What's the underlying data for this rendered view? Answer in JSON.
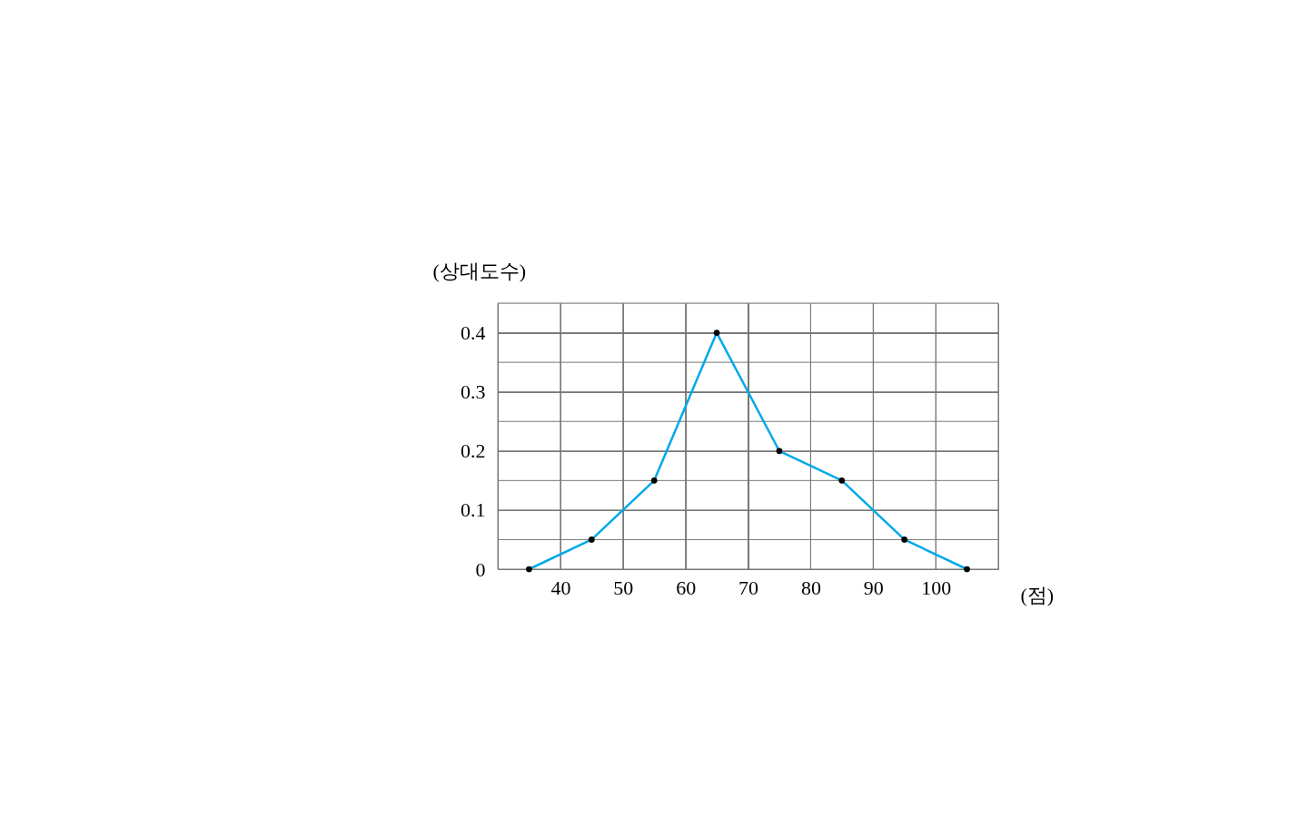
{
  "chart_data": {
    "type": "line",
    "xlabel": "(점)",
    "ylabel": "(상대도수)",
    "x": [
      35,
      45,
      55,
      65,
      75,
      85,
      95,
      105
    ],
    "series": [
      {
        "color": "#00a9e8",
        "values": [
          0,
          0.05,
          0.15,
          0.4,
          0.2,
          0.15,
          0.05,
          0
        ]
      }
    ],
    "xlim": [
      30,
      110
    ],
    "xticks": [
      {
        "value": 30,
        "label": null
      },
      40,
      50,
      60,
      70,
      80,
      90,
      100,
      {
        "value": 110,
        "label": null
      }
    ],
    "ylim": [
      0,
      0.45
    ],
    "yticks": [
      0,
      {
        "value": 0.05,
        "label": null
      },
      0.1,
      {
        "value": 0.15,
        "label": null
      },
      0.2,
      {
        "value": 0.25,
        "label": null
      },
      0.3,
      {
        "value": 0.35,
        "label": null
      },
      0.4,
      {
        "value": 0.45,
        "label": null
      }
    ],
    "grid": true,
    "marker": "circle",
    "line_style": "solid"
  }
}
